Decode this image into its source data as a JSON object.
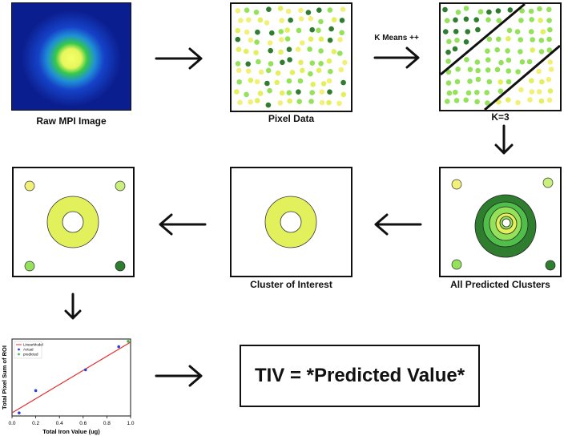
{
  "labels": {
    "raw_mpi": "Raw MPI Image",
    "pixel_data": "Pixel Data",
    "kmeans": "K Means ++",
    "k3": "K=3",
    "all_clusters": "All Predicted Clusters",
    "cluster_interest": "Cluster of Interest"
  },
  "result": {
    "text": "TIV = *Predicted Value*"
  },
  "colors": {
    "light_yellow": "#f3f07a",
    "yellow_green": "#e2f05c",
    "light_green": "#93e25a",
    "dark_green": "#2f7d2f",
    "fit_line": "#e03030",
    "actual": "#2a3fd6",
    "predicted": "#3cb84a"
  },
  "chart_data": {
    "type": "scatter",
    "xlabel": "Total Iron Value (ug)",
    "ylabel": "Total Pixel Sum of ROI",
    "xlim": [
      0.0,
      1.0
    ],
    "xticks": [
      "0.0",
      "0.2",
      "0.4",
      "0.6",
      "0.8",
      "1.0"
    ],
    "legend": [
      "LinearModel",
      "Actual",
      "predicted"
    ],
    "legend_position": "top-left",
    "fit_line": {
      "x": [
        0.0,
        1.0
      ],
      "y": [
        0.04,
        0.96
      ]
    },
    "actual": {
      "x": [
        0.06,
        0.2,
        0.62,
        0.9
      ],
      "y": [
        0.04,
        0.33,
        0.6,
        0.9
      ]
    },
    "predicted": {
      "x": [
        0.98
      ],
      "y": [
        0.97
      ]
    }
  }
}
